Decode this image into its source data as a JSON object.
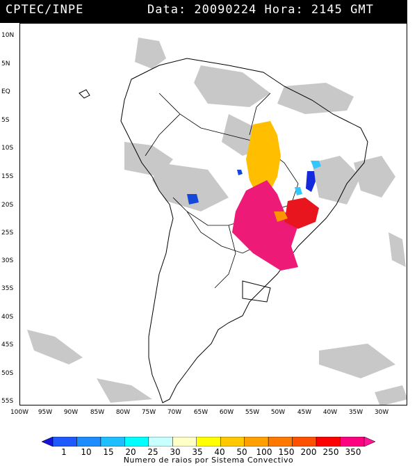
{
  "header": {
    "org": "CPTEC/INPE",
    "datetime": "Data: 20090224 Hora: 2145 GMT"
  },
  "axes": {
    "lat_labels": [
      "10N",
      "5N",
      "EQ",
      "5S",
      "10S",
      "15S",
      "20S",
      "25S",
      "30S",
      "35S",
      "40S",
      "45S",
      "50S",
      "55S"
    ],
    "lon_labels": [
      "100W",
      "95W",
      "90W",
      "85W",
      "80W",
      "75W",
      "70W",
      "65W",
      "60W",
      "55W",
      "50W",
      "45W",
      "40W",
      "35W",
      "30W"
    ]
  },
  "legend": {
    "title": "Numero de raios por Sistema Convectivo",
    "labels": [
      "1",
      "10",
      "15",
      "20",
      "25",
      "30",
      "35",
      "40",
      "50",
      "100",
      "150",
      "200",
      "250",
      "350"
    ],
    "colors": [
      "#1414dc",
      "#1e5aff",
      "#1e8cff",
      "#1ebeff",
      "#00ffff",
      "#c8ffff",
      "#ffffc8",
      "#ffff00",
      "#ffc800",
      "#ffa000",
      "#ff7800",
      "#ff5000",
      "#ff0000",
      "#ff0080",
      "#ff1493"
    ]
  },
  "map_layers": {
    "background_cloud_color": "#c8c8c8",
    "storm_clusters": [
      {
        "name": "central-brazil-cluster",
        "color": "#ffbe00",
        "category": "50"
      },
      {
        "name": "southern-cluster",
        "color": "#ee1a78",
        "category": "350"
      },
      {
        "name": "southeast-cluster",
        "color": "#e8141e",
        "category": "250"
      },
      {
        "name": "southeast-orange-cluster",
        "color": "#ff9400",
        "category": "100"
      },
      {
        "name": "east-blue-cluster",
        "color": "#1428dc",
        "category": "1"
      },
      {
        "name": "east-cyan-cluster",
        "color": "#32c8ff",
        "category": "20"
      },
      {
        "name": "bolivia-blue-cluster",
        "color": "#1448dc",
        "category": "10"
      }
    ]
  }
}
